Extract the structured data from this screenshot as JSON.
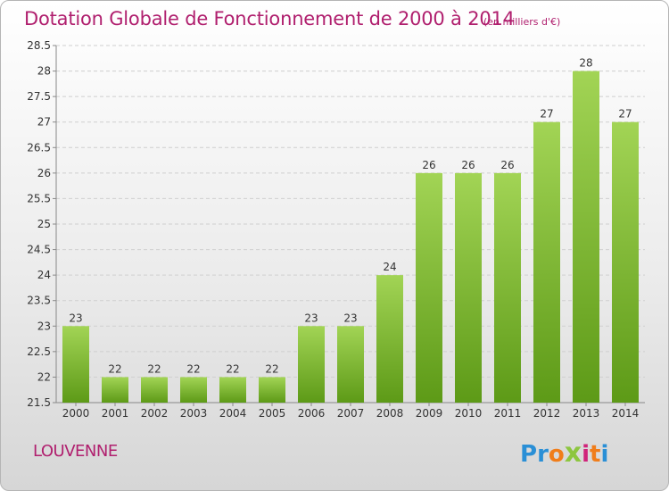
{
  "header": {
    "title": "Dotation Globale de Fonctionnement de 2000 à 2014",
    "unit": "(en milliers d'€)"
  },
  "footer": {
    "place": "LOUVENNE",
    "logo_letters": [
      "P",
      "r",
      "o",
      "x",
      "i",
      "t",
      "i"
    ],
    "logo_colors": [
      "#2a8fd6",
      "#2a8fd6",
      "#f07d1a",
      "#8dc63f",
      "#d0237a",
      "#f07d1a",
      "#2a8fd6"
    ]
  },
  "chart_data": {
    "type": "bar",
    "categories": [
      "2000",
      "2001",
      "2002",
      "2003",
      "2004",
      "2005",
      "2006",
      "2007",
      "2008",
      "2009",
      "2010",
      "2011",
      "2012",
      "2013",
      "2014"
    ],
    "values": [
      23,
      22,
      22,
      22,
      22,
      22,
      23,
      23,
      24,
      26,
      26,
      26,
      27,
      28,
      27
    ],
    "data_labels": [
      "23",
      "22",
      "22",
      "22",
      "22",
      "22",
      "23",
      "23",
      "24",
      "26",
      "26",
      "26",
      "27",
      "28",
      "27"
    ],
    "ylim": [
      21.5,
      28.5
    ],
    "yticks": [
      21.5,
      22,
      22.5,
      23,
      23.5,
      24,
      24.5,
      25,
      25.5,
      26,
      26.5,
      27,
      27.5,
      28,
      28.5
    ],
    "ytick_labels": [
      "21.5",
      "22",
      "22.5",
      "23",
      "23.5",
      "24",
      "24.5",
      "25",
      "25.5",
      "26",
      "26.5",
      "27",
      "27.5",
      "28",
      "28.5"
    ],
    "grid": true,
    "bar_color_top": "#a2d455",
    "bar_color_bottom": "#5d9a17"
  }
}
